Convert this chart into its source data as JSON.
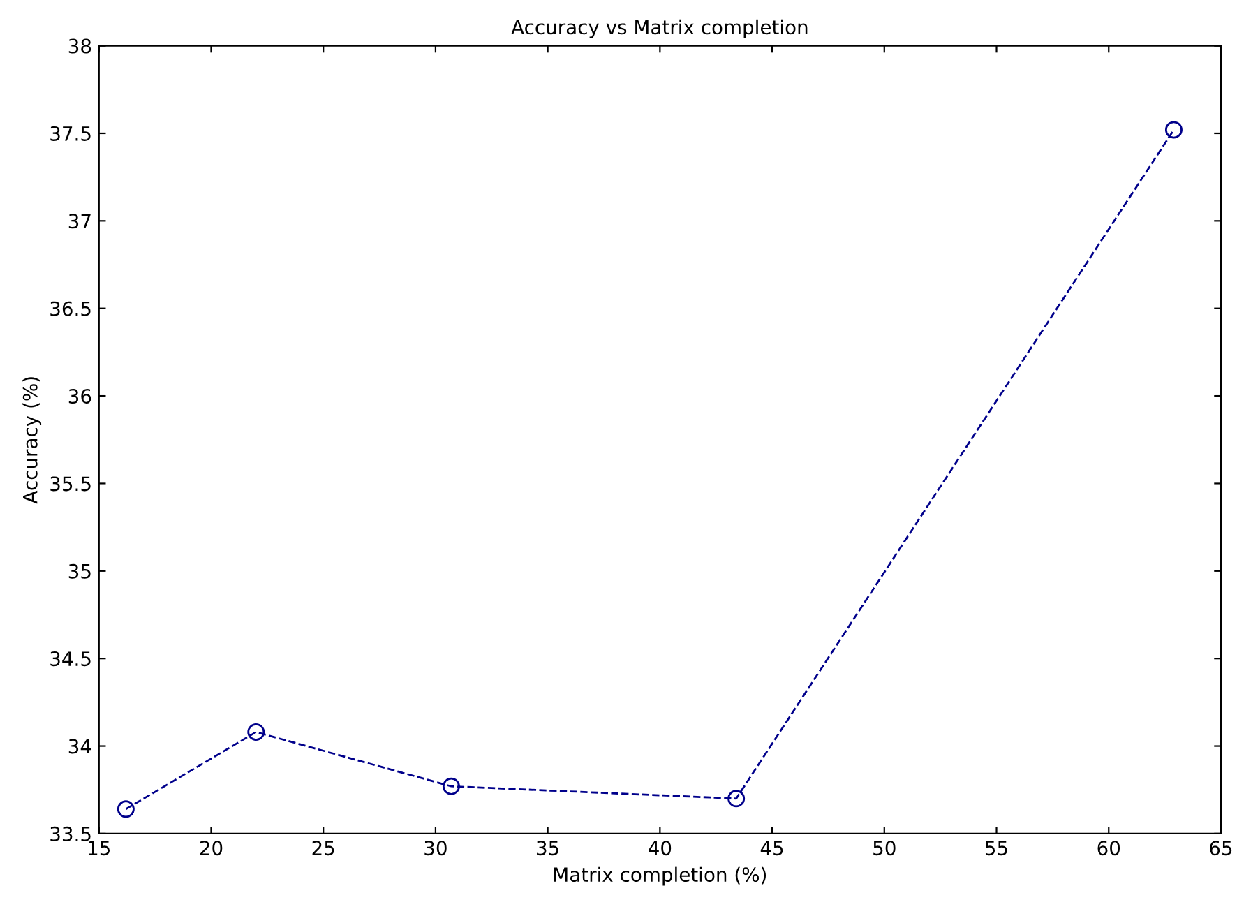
{
  "chart_data": {
    "type": "line",
    "title": "Accuracy vs Matrix completion",
    "xlabel": "Matrix completion (%)",
    "ylabel": "Accuracy (%)",
    "x": [
      16.2,
      22.0,
      30.7,
      43.4,
      62.9
    ],
    "series": [
      {
        "color": "#00008b",
        "values": [
          33.64,
          34.08,
          33.77,
          33.7,
          37.52
        ]
      }
    ],
    "xlim": [
      15,
      65
    ],
    "xticks": [
      15,
      20,
      25,
      30,
      35,
      40,
      45,
      50,
      55,
      60,
      65
    ],
    "ylim": [
      33.5,
      38
    ],
    "yticks": [
      33.5,
      34,
      34.5,
      35,
      35.5,
      36,
      36.5,
      37,
      37.5,
      38
    ],
    "grid": false,
    "legend": false,
    "marker": "circle",
    "line_style": "dashed"
  }
}
